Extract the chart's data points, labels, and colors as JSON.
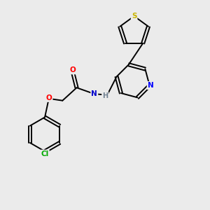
{
  "background_color": "#ebebeb",
  "bond_color": "#000000",
  "atom_colors": {
    "S": "#c8b400",
    "N_pyridine": "#0000ff",
    "N_amide": "#0000cc",
    "O": "#ff0000",
    "Cl": "#00aa00",
    "H": "#708090",
    "C": "#000000"
  },
  "figsize": [
    3.0,
    3.0
  ],
  "dpi": 100
}
